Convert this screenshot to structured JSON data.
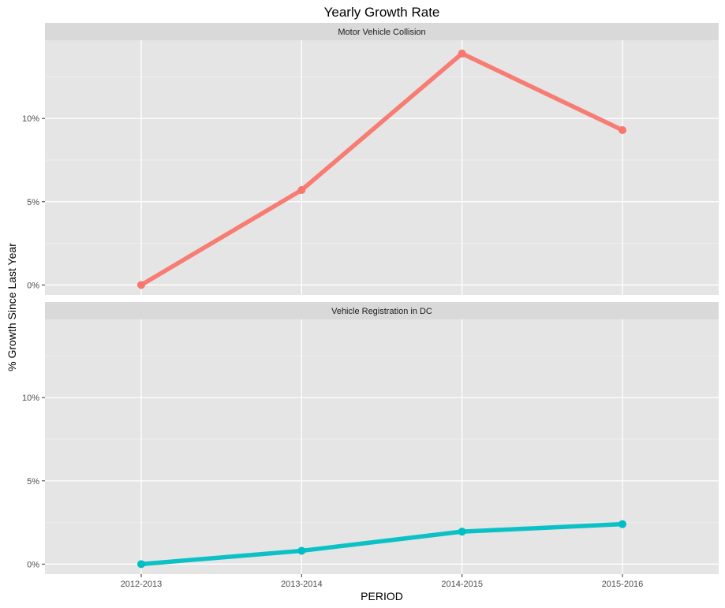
{
  "chart_data": {
    "type": "line",
    "title": "Yearly Growth Rate",
    "xlabel": "PERIOD",
    "ylabel": "% Growth Since Last Year",
    "categories": [
      "2012-2013",
      "2013-2014",
      "2014-2015",
      "2015-2016"
    ],
    "y_ticks": [
      0,
      5,
      10
    ],
    "y_tick_labels": [
      "0%",
      "5%",
      "10%"
    ],
    "ylim": [
      0,
      14
    ],
    "facets": [
      {
        "name": "Motor Vehicle Collision",
        "color": "#F8766D",
        "values": [
          0,
          5.7,
          13.9,
          9.3
        ]
      },
      {
        "name": "Vehicle Registration in DC",
        "color": "#00BFC4",
        "values": [
          0,
          0.8,
          1.95,
          2.4
        ]
      }
    ],
    "panel_background": "#E5E5E5",
    "strip_background": "#D9D9D9",
    "grid": true,
    "legend": "none"
  }
}
